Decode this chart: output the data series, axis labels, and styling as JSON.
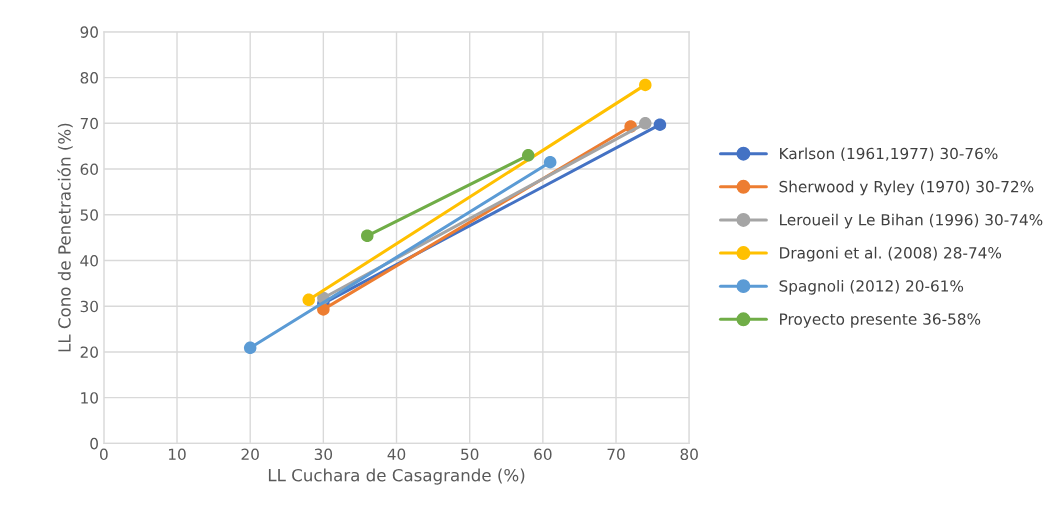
{
  "chart_data": {
    "type": "line",
    "xlabel": "LL Cuchara de Casagrande (%)",
    "ylabel": "LL Cono de Penetración (%)",
    "xlim": [
      0,
      80
    ],
    "xticks": [
      0,
      10,
      20,
      30,
      40,
      50,
      60,
      70,
      80
    ],
    "ylim": [
      0,
      90
    ],
    "yticks": [
      0,
      10,
      20,
      30,
      40,
      50,
      60,
      70,
      80,
      90
    ],
    "grid": true,
    "legend": "right",
    "marker": "circle",
    "line_style": "solid",
    "series": [
      {
        "name": "Karlson (1961,1977) 30-76%",
        "color": "#4472c4",
        "x": [
          30,
          76
        ],
        "values": [
          30.6,
          69.7
        ]
      },
      {
        "name": "Sherwood y Ryley (1970) 30-72%",
        "color": "#ed7d31",
        "x": [
          30,
          72
        ],
        "values": [
          29.3,
          69.3
        ]
      },
      {
        "name": "Leroueil y Le Bihan (1996) 30-74%",
        "color": "#a5a5a5",
        "x": [
          30,
          74
        ],
        "values": [
          31.8,
          70
        ]
      },
      {
        "name": "Dragoni et al. (2008) 28-74%",
        "color": "#ffc000",
        "x": [
          28,
          74
        ],
        "values": [
          31.4,
          78.4
        ]
      },
      {
        "name": "Spagnoli (2012) 20-61%",
        "color": "#5b9bd5",
        "x": [
          20,
          61
        ],
        "values": [
          20.9,
          61.5
        ]
      },
      {
        "name": "Proyecto presente 36-58%",
        "color": "#70ad47",
        "x": [
          36,
          58
        ],
        "values": [
          45.4,
          63
        ]
      }
    ]
  }
}
